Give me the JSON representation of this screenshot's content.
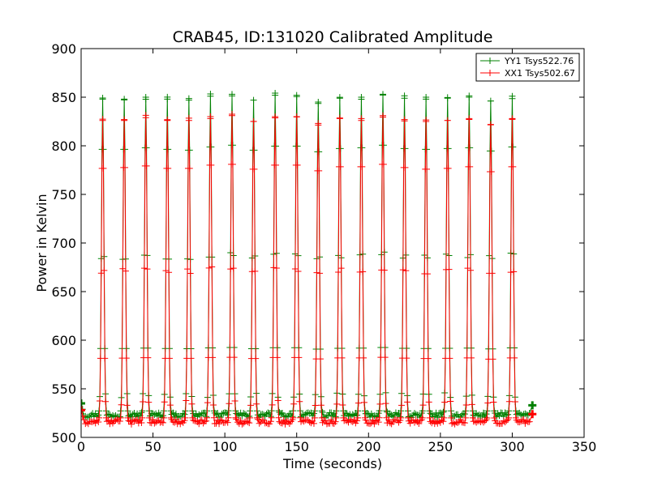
{
  "chart_data": {
    "type": "line",
    "title": "CRAB45, ID:131020 Calibrated Amplitude",
    "xlabel": "Time (seconds)",
    "ylabel": "Power in Kelvin",
    "xlim": [
      0,
      350
    ],
    "ylim": [
      500,
      900
    ],
    "xticks": [
      0,
      50,
      100,
      150,
      200,
      250,
      300,
      350
    ],
    "yticks": [
      500,
      550,
      600,
      650,
      700,
      750,
      800,
      850,
      900
    ],
    "grid": false,
    "legend_position": "top-right",
    "marker": "plus",
    "peak_times": [
      15,
      30,
      45,
      60,
      75,
      90,
      105,
      120,
      135,
      150,
      165,
      180,
      195,
      210,
      225,
      240,
      255,
      270,
      285,
      300
    ],
    "series": [
      {
        "name": "YY1 Tsys522.76",
        "color": "#008000",
        "start_value": 535,
        "end_value": 533,
        "baseline": 523,
        "peaks": [
          848,
          848,
          850,
          848,
          847,
          851,
          853,
          847,
          852,
          852,
          845,
          849,
          850,
          853,
          849,
          848,
          849,
          850,
          846,
          851
        ]
      },
      {
        "name": "XX1 Tsys502.67",
        "color": "#ff0000",
        "start_value": 528,
        "end_value": 524,
        "baseline": 516,
        "peaks": [
          826,
          827,
          829,
          826,
          826,
          830,
          831,
          825,
          830,
          830,
          823,
          828,
          828,
          831,
          827,
          825,
          826,
          828,
          822,
          828
        ]
      }
    ]
  }
}
